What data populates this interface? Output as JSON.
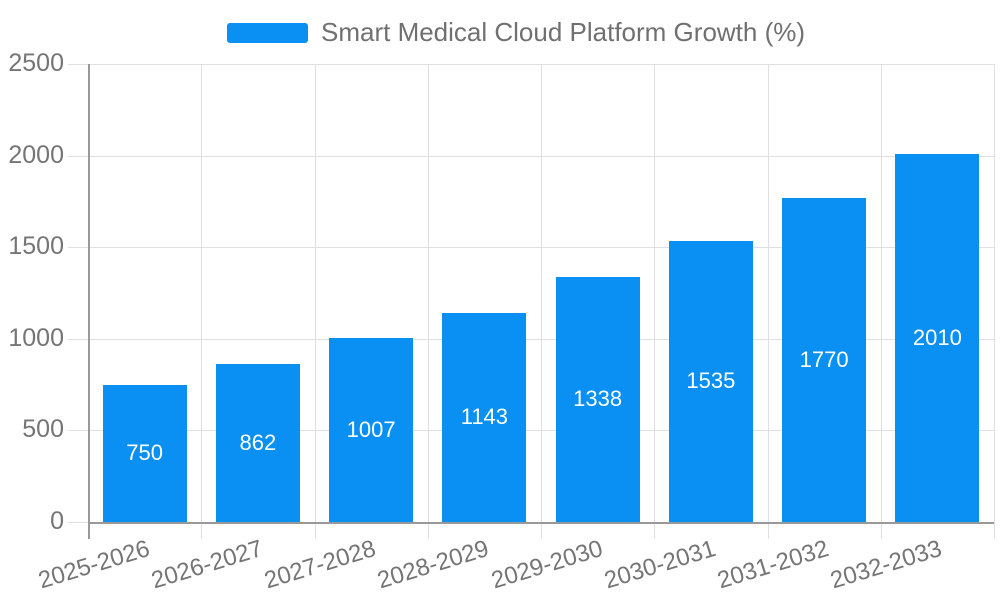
{
  "legend": {
    "label": "Smart Medical Cloud Platform Growth (%)"
  },
  "chart_data": {
    "type": "bar",
    "title": "Smart Medical Cloud Platform Growth (%)",
    "categories": [
      "2025-2026",
      "2026-2027",
      "2027-2028",
      "2028-2029",
      "2029-2030",
      "2030-2031",
      "2031-2032",
      "2032-2033"
    ],
    "values": [
      750,
      862,
      1007,
      1143,
      1338,
      1535,
      1770,
      2010
    ],
    "value_labels": [
      "750",
      "862",
      "1007",
      "1143",
      "1338",
      "1535",
      "1770",
      "2010"
    ],
    "yticks": [
      0,
      500,
      1000,
      1500,
      2000,
      2500
    ],
    "ylim": [
      0,
      2500
    ],
    "xlabel": "",
    "ylabel": "",
    "grid": true,
    "legend_position": "top",
    "value_label_position": "inside-center"
  },
  "colors": {
    "bar": "#0a90f2",
    "bar_value_text": "#ffffff",
    "axis_label": "#757575",
    "legend_text": "#707070",
    "gridline": "#e0e0e0",
    "axis_line": "#999999",
    "background": "#ffffff"
  }
}
